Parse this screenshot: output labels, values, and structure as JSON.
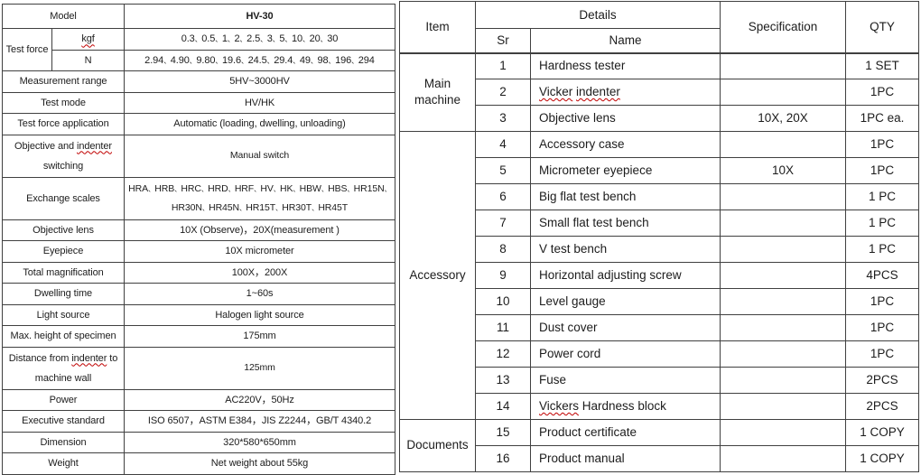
{
  "page": {
    "background": "#ffffff",
    "text_color": "#1c1c1c",
    "border_color": "#404040",
    "squiggle_color": "#c00000"
  },
  "specs": {
    "model_label": "Model",
    "model_value": "HV-30",
    "test_force_label": "Test force",
    "kgf_label": "kgf",
    "kgf_value": "0.3、0.5、1、2、2.5、3、5、10、20、30",
    "n_label": "N",
    "n_value": "2.94、4.90、9.80、19.6、24.5、29.4、49、98、196、294",
    "rows": [
      {
        "label": "Measurement range",
        "value": "5HV~3000HV"
      },
      {
        "label": "Test mode",
        "value": "HV/HK"
      },
      {
        "label": "Test force application",
        "value": "Automatic (loading, dwelling, unloading)"
      },
      {
        "label": "Objective and indenter\nswitching",
        "value": "Manual switch",
        "label_squiggle": [
          "indenter"
        ],
        "tall": true
      },
      {
        "label": "Exchange scales",
        "value": "HRA、HRB、HRC、HRD、HRF、HV、HK、HBW、HBS、HR15N、\nHR30N、HR45N、HR15T、HR30T、HR45T",
        "tall": true
      },
      {
        "label": "Objective lens",
        "value": "10X (Observe)，20X(measurement )"
      },
      {
        "label": "Eyepiece",
        "value": "10X micrometer"
      },
      {
        "label": "Total magnification",
        "value": "100X，200X"
      },
      {
        "label": "Dwelling time",
        "value": "1~60s"
      },
      {
        "label": "Light source",
        "value": "Halogen light source"
      },
      {
        "label": "Max. height of specimen",
        "value": "175mm"
      },
      {
        "label": "Distance from indenter to\nmachine wall",
        "value": "125mm",
        "label_squiggle": [
          "indenter"
        ],
        "tall": true
      },
      {
        "label": "Power",
        "value": "AC220V，50Hz"
      },
      {
        "label": "Executive standard",
        "value": "ISO 6507，ASTM E384，JIS Z2244，GB/T 4340.2"
      },
      {
        "label": "Dimension",
        "value": "320*580*650mm"
      },
      {
        "label": "Weight",
        "value": "Net weight about 55kg"
      }
    ]
  },
  "packing": {
    "headers": {
      "item": "Item",
      "details": "Details",
      "sr": "Sr",
      "name": "Name",
      "specification": "Specification",
      "qty": "QTY"
    },
    "groups": [
      {
        "label": "Main machine",
        "span": 3
      },
      {
        "label": "Accessory",
        "span": 11
      },
      {
        "label": "Documents",
        "span": 2
      }
    ],
    "rows": [
      {
        "sr": "1",
        "name": "Hardness tester",
        "spec": "",
        "qty": "1 SET"
      },
      {
        "sr": "2",
        "name": "Vicker indenter",
        "spec": "",
        "qty": "1PC",
        "name_squiggle": [
          "Vicker",
          "indenter"
        ]
      },
      {
        "sr": "3",
        "name": "Objective lens",
        "spec": "10X, 20X",
        "qty": "1PC ea."
      },
      {
        "sr": "4",
        "name": "Accessory case",
        "spec": "",
        "qty": "1PC"
      },
      {
        "sr": "5",
        "name": "Micrometer eyepiece",
        "spec": "10X",
        "qty": "1PC"
      },
      {
        "sr": "6",
        "name": "Big flat test bench",
        "spec": "",
        "qty": "1 PC"
      },
      {
        "sr": "7",
        "name": "Small flat test bench",
        "spec": "",
        "qty": "1 PC"
      },
      {
        "sr": "8",
        "name": "V test bench",
        "spec": "",
        "qty": "1 PC"
      },
      {
        "sr": "9",
        "name": "Horizontal adjusting screw",
        "spec": "",
        "qty": "4PCS"
      },
      {
        "sr": "10",
        "name": "Level gauge",
        "spec": "",
        "qty": "1PC"
      },
      {
        "sr": "11",
        "name": "Dust cover",
        "spec": "",
        "qty": "1PC"
      },
      {
        "sr": "12",
        "name": "Power cord",
        "spec": "",
        "qty": "1PC"
      },
      {
        "sr": "13",
        "name": "Fuse",
        "spec": "",
        "qty": "2PCS"
      },
      {
        "sr": "14",
        "name": "Vickers Hardness block",
        "spec": "",
        "qty": "2PCS",
        "name_squiggle": [
          "Vickers"
        ]
      },
      {
        "sr": "15",
        "name": "Product certificate",
        "spec": "",
        "qty": "1 COPY"
      },
      {
        "sr": "16",
        "name": "Product manual",
        "spec": "",
        "qty": "1 COPY"
      }
    ]
  }
}
